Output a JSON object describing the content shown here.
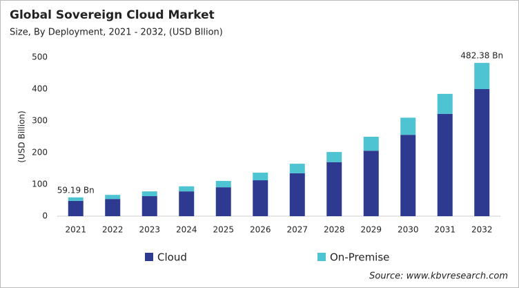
{
  "chart_data": {
    "type": "stacked_bar",
    "title": "Global Sovereign Cloud Market",
    "subtitle": "Size, By Deployment, 2021 - 2032, (USD Bllion)",
    "y_label": "(USD Billion)",
    "source": "Source: www.kbvresearch.com",
    "categories": [
      "2021",
      "2022",
      "2023",
      "2024",
      "2025",
      "2026",
      "2027",
      "2028",
      "2029",
      "2030",
      "2031",
      "2032"
    ],
    "series": [
      {
        "name": "Cloud",
        "color": "#2d3a8f",
        "values": [
          48,
          54,
          63,
          78,
          91,
          113,
          135,
          170,
          206,
          256,
          322,
          400
        ]
      },
      {
        "name": "On-Premise",
        "color": "#4ec3d1",
        "values": [
          11.19,
          13,
          15,
          16,
          20,
          24,
          30,
          32,
          44,
          54,
          63,
          82.38
        ]
      }
    ],
    "annotations": [
      {
        "x": "2021",
        "value": 59.19,
        "label": "59.19 Bn"
      },
      {
        "x": "2032",
        "value": 482.38,
        "label": "482.38 Bn"
      }
    ],
    "ylim": [
      0,
      500
    ],
    "yticks": [
      0,
      100,
      200,
      300,
      400,
      500
    ],
    "grid": false,
    "legend": "bottom"
  }
}
